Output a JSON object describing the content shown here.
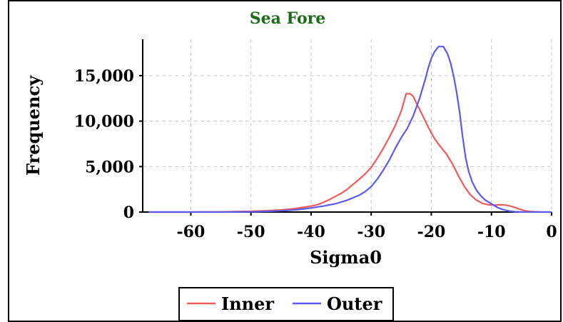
{
  "chart_data": {
    "type": "line",
    "title": "Sea Fore",
    "title_color": "#1a6b1a",
    "xlabel": "Sigma0",
    "ylabel": "Frequency",
    "xlim": [
      -68,
      0
    ],
    "ylim": [
      0,
      19000
    ],
    "x_ticks": [
      -60,
      -50,
      -40,
      -30,
      -20,
      -10,
      0
    ],
    "x_tick_labels": [
      "-60",
      "-50",
      "-40",
      "-30",
      "-20",
      "-10",
      "0"
    ],
    "y_ticks": [
      0,
      5000,
      10000,
      15000
    ],
    "y_tick_labels": [
      "0",
      "5,000",
      "10,000",
      "15,000"
    ],
    "grid": true,
    "legend_position": "bottom",
    "series": [
      {
        "name": "Inner",
        "color": "#f05a5a",
        "points": [
          [
            -67,
            0
          ],
          [
            -60,
            0
          ],
          [
            -55,
            20
          ],
          [
            -50,
            80
          ],
          [
            -47,
            160
          ],
          [
            -45,
            230
          ],
          [
            -43,
            350
          ],
          [
            -41,
            550
          ],
          [
            -40,
            650
          ],
          [
            -39,
            800
          ],
          [
            -38,
            1050
          ],
          [
            -37,
            1350
          ],
          [
            -36,
            1700
          ],
          [
            -35,
            2050
          ],
          [
            -34,
            2500
          ],
          [
            -33,
            3050
          ],
          [
            -32,
            3600
          ],
          [
            -31,
            4200
          ],
          [
            -30,
            4900
          ],
          [
            -29,
            5900
          ],
          [
            -28,
            7000
          ],
          [
            -27,
            8200
          ],
          [
            -26,
            9500
          ],
          [
            -25,
            11100
          ],
          [
            -24.2,
            13000
          ],
          [
            -23.5,
            13000
          ],
          [
            -23,
            12700
          ],
          [
            -22.5,
            12000
          ],
          [
            -21.5,
            10700
          ],
          [
            -20.5,
            9300
          ],
          [
            -19.5,
            8100
          ],
          [
            -18.5,
            7200
          ],
          [
            -17.5,
            6400
          ],
          [
            -16.5,
            5300
          ],
          [
            -15.5,
            4000
          ],
          [
            -14.5,
            2800
          ],
          [
            -13.5,
            1900
          ],
          [
            -12.5,
            1300
          ],
          [
            -11.5,
            950
          ],
          [
            -10.5,
            800
          ],
          [
            -9.5,
            750
          ],
          [
            -8.5,
            800
          ],
          [
            -7.5,
            750
          ],
          [
            -6.5,
            600
          ],
          [
            -5.5,
            350
          ],
          [
            -4.5,
            150
          ],
          [
            -3.5,
            50
          ],
          [
            -2,
            10
          ],
          [
            0,
            0
          ]
        ]
      },
      {
        "name": "Outer",
        "color": "#5a5af0",
        "points": [
          [
            -67,
            0
          ],
          [
            -55,
            0
          ],
          [
            -50,
            20
          ],
          [
            -47,
            80
          ],
          [
            -44,
            170
          ],
          [
            -42,
            280
          ],
          [
            -40,
            450
          ],
          [
            -38,
            650
          ],
          [
            -36,
            900
          ],
          [
            -34,
            1300
          ],
          [
            -32,
            1850
          ],
          [
            -31,
            2250
          ],
          [
            -30,
            2800
          ],
          [
            -29,
            3600
          ],
          [
            -28,
            4600
          ],
          [
            -27,
            5700
          ],
          [
            -26,
            7000
          ],
          [
            -25,
            8200
          ],
          [
            -24,
            9200
          ],
          [
            -23,
            10600
          ],
          [
            -22,
            12400
          ],
          [
            -21,
            14600
          ],
          [
            -20.5,
            15900
          ],
          [
            -20,
            16900
          ],
          [
            -19.5,
            17600
          ],
          [
            -18.8,
            18200
          ],
          [
            -18,
            18200
          ],
          [
            -17.3,
            17400
          ],
          [
            -16.8,
            16400
          ],
          [
            -16.3,
            15000
          ],
          [
            -15.8,
            13200
          ],
          [
            -15.3,
            11000
          ],
          [
            -14.8,
            8300
          ],
          [
            -14.3,
            6000
          ],
          [
            -13.8,
            4500
          ],
          [
            -13.2,
            3300
          ],
          [
            -12.5,
            2400
          ],
          [
            -11.8,
            1800
          ],
          [
            -11,
            1300
          ],
          [
            -10,
            900
          ],
          [
            -9,
            500
          ],
          [
            -8,
            250
          ],
          [
            -7,
            100
          ],
          [
            -6,
            30
          ],
          [
            -5,
            10
          ],
          [
            0,
            0
          ]
        ]
      }
    ]
  }
}
